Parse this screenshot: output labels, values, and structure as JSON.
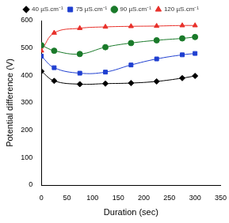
{
  "chart_data": {
    "type": "line",
    "x_label": "Duration (sec)",
    "y_label": "Potential difference (V)",
    "x": [
      0,
      25,
      75,
      125,
      175,
      225,
      275,
      300
    ],
    "series": [
      {
        "name": "40 µS.cm⁻¹",
        "color": "#000000",
        "marker": "diamond",
        "line_style": "solid",
        "values": [
          415,
          380,
          368,
          370,
          372,
          378,
          390,
          398
        ]
      },
      {
        "name": "75 µS.cm⁻¹",
        "color": "#1f3fd0",
        "marker": "square",
        "line_style": "solid",
        "values": [
          470,
          428,
          408,
          412,
          438,
          460,
          475,
          480
        ]
      },
      {
        "name": "90 µS.cm⁻¹",
        "color": "#1a7a2a",
        "marker": "circle",
        "line_style": "solid",
        "values": [
          510,
          490,
          478,
          503,
          518,
          528,
          535,
          540
        ]
      },
      {
        "name": "120 µS.cm⁻¹",
        "color": "#e8302a",
        "marker": "triangle",
        "line_style": "solid",
        "values": [
          490,
          555,
          572,
          577,
          579,
          580,
          582,
          582
        ]
      }
    ],
    "xlim": [
      0,
      350
    ],
    "xticks": [
      0,
      50,
      100,
      150,
      200,
      250,
      300,
      350
    ],
    "ylim": [
      0,
      600
    ],
    "yticks": [
      0,
      100,
      200,
      300,
      400,
      500,
      600
    ],
    "grid": false,
    "legend": "top"
  }
}
